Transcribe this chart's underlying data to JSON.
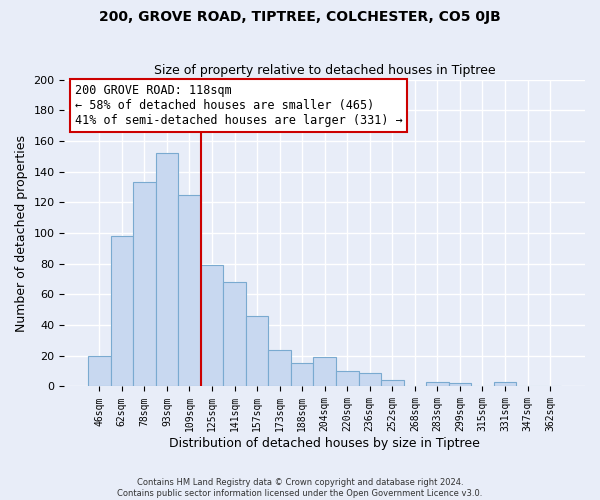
{
  "title1": "200, GROVE ROAD, TIPTREE, COLCHESTER, CO5 0JB",
  "title2": "Size of property relative to detached houses in Tiptree",
  "xlabel": "Distribution of detached houses by size in Tiptree",
  "ylabel": "Number of detached properties",
  "bar_labels": [
    "46sqm",
    "62sqm",
    "78sqm",
    "93sqm",
    "109sqm",
    "125sqm",
    "141sqm",
    "157sqm",
    "173sqm",
    "188sqm",
    "204sqm",
    "220sqm",
    "236sqm",
    "252sqm",
    "268sqm",
    "283sqm",
    "299sqm",
    "315sqm",
    "331sqm",
    "347sqm",
    "362sqm"
  ],
  "bar_values": [
    20,
    98,
    133,
    152,
    125,
    79,
    68,
    46,
    24,
    15,
    19,
    10,
    9,
    4,
    0,
    3,
    2,
    0,
    3,
    0,
    0
  ],
  "bar_color": "#c8d8f0",
  "bar_edge_color": "#7aaad0",
  "vline_color": "#cc0000",
  "annotation_title": "200 GROVE ROAD: 118sqm",
  "annotation_line1": "← 58% of detached houses are smaller (465)",
  "annotation_line2": "41% of semi-detached houses are larger (331) →",
  "annotation_box_color": "#ffffff",
  "annotation_box_edge": "#cc0000",
  "ylim": [
    0,
    200
  ],
  "yticks": [
    0,
    20,
    40,
    60,
    80,
    100,
    120,
    140,
    160,
    180,
    200
  ],
  "footer1": "Contains HM Land Registry data © Crown copyright and database right 2024.",
  "footer2": "Contains public sector information licensed under the Open Government Licence v3.0.",
  "bg_color": "#e8edf8",
  "grid_color": "#ffffff"
}
